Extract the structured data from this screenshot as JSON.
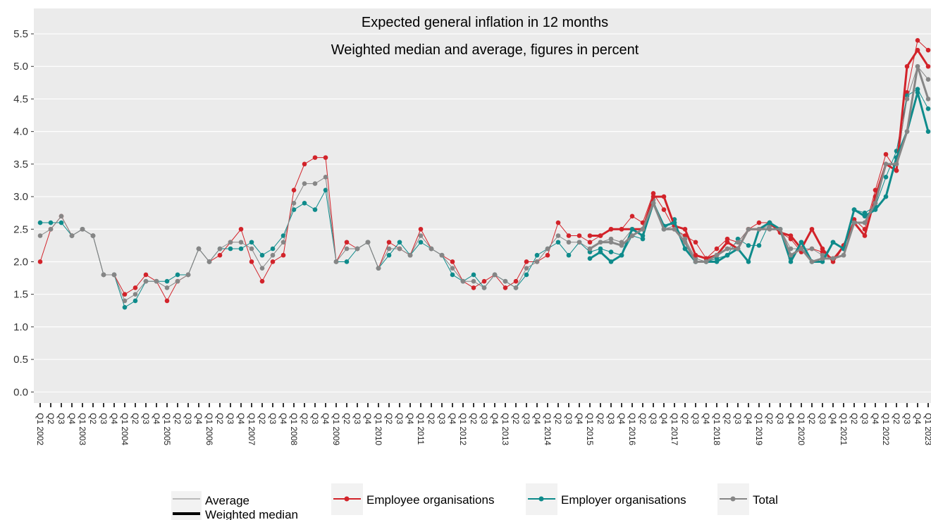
{
  "chart_data": {
    "type": "line",
    "title": "Expected general inflation in 12 months",
    "subtitle": "Weighted median and average, figures in percent",
    "categories": [
      "Q1 2002",
      "Q2",
      "Q3",
      "Q4",
      "Q1 2003",
      "Q2",
      "Q3",
      "Q4",
      "Q1 2004",
      "Q2",
      "Q3",
      "Q4",
      "Q1 2005",
      "Q2",
      "Q3",
      "Q4",
      "Q1 2006",
      "Q2",
      "Q3",
      "Q4",
      "Q1 2007",
      "Q2",
      "Q3",
      "Q4",
      "Q1 2008",
      "Q2",
      "Q3",
      "Q4",
      "Q1 2009",
      "Q2",
      "Q3",
      "Q4",
      "Q1 2010",
      "Q2",
      "Q3",
      "Q4",
      "Q1 2011",
      "Q2",
      "Q3",
      "Q4",
      "Q1 2012",
      "Q2",
      "Q3",
      "Q4",
      "Q1 2013",
      "Q2",
      "Q3",
      "Q4",
      "Q1 2014",
      "Q2",
      "Q3",
      "Q4",
      "Q1 2015",
      "Q2",
      "Q3",
      "Q4",
      "Q1 2016",
      "Q2",
      "Q3",
      "Q4",
      "Q1 2017",
      "Q2",
      "Q3",
      "Q4",
      "Q1 2018",
      "Q2",
      "Q3",
      "Q4",
      "Q1 2019",
      "Q2",
      "Q3",
      "Q4",
      "Q1 2020",
      "Q2",
      "Q3",
      "Q4",
      "Q1 2021",
      "Q2",
      "Q3",
      "Q4",
      "Q1 2022",
      "Q2",
      "Q3",
      "Q4",
      "Q1 2023"
    ],
    "line_styles": [
      "Average",
      "Weighted median"
    ],
    "series": [
      {
        "name": "Employee organisations",
        "color": "#d2232a",
        "values": [
          2.0,
          2.5,
          2.7,
          2.4,
          2.5,
          2.4,
          1.8,
          1.8,
          1.5,
          1.6,
          1.8,
          1.7,
          1.4,
          1.7,
          1.8,
          2.2,
          2.0,
          2.1,
          2.3,
          2.5,
          2.0,
          1.7,
          2.0,
          2.1,
          3.1,
          3.5,
          3.6,
          3.6,
          2.0,
          2.3,
          2.2,
          2.3,
          1.9,
          2.3,
          2.2,
          2.1,
          2.5,
          2.2,
          2.1,
          2.0,
          1.7,
          1.6,
          1.7,
          1.8,
          1.6,
          1.7,
          2.0,
          2.0,
          2.1,
          2.6,
          2.4,
          2.4,
          2.3,
          2.4,
          2.5,
          2.5,
          2.7,
          2.6,
          3.05,
          2.8,
          2.5,
          2.4,
          2.3,
          2.05,
          2.2,
          2.35,
          2.3,
          2.5,
          2.6,
          2.6,
          2.45,
          2.35,
          2.15,
          2.2,
          2.15,
          2.05,
          2.25,
          2.65,
          2.5,
          3.1,
          3.65,
          3.4,
          4.6,
          5.4,
          5.25
        ],
        "median_values": [
          null,
          null,
          null,
          null,
          null,
          null,
          null,
          null,
          null,
          null,
          null,
          null,
          null,
          null,
          null,
          null,
          null,
          null,
          null,
          null,
          null,
          null,
          null,
          null,
          null,
          null,
          null,
          null,
          null,
          null,
          null,
          null,
          null,
          null,
          null,
          null,
          null,
          null,
          null,
          null,
          null,
          null,
          null,
          null,
          null,
          null,
          null,
          null,
          null,
          null,
          null,
          null,
          2.4,
          2.4,
          2.5,
          2.5,
          2.5,
          2.5,
          3.0,
          3.0,
          2.55,
          2.5,
          2.1,
          2.05,
          2.1,
          2.3,
          2.2,
          2.5,
          2.5,
          2.6,
          2.45,
          2.4,
          2.2,
          2.5,
          2.2,
          2.0,
          2.25,
          2.6,
          2.4,
          3.0,
          3.5,
          3.4,
          5.0,
          5.25,
          5.0
        ]
      },
      {
        "name": "Employer organisations",
        "color": "#0e8b8b",
        "values": [
          2.6,
          2.6,
          2.6,
          2.4,
          2.5,
          2.4,
          1.8,
          1.8,
          1.3,
          1.4,
          1.7,
          1.7,
          1.7,
          1.8,
          1.8,
          2.2,
          2.0,
          2.2,
          2.2,
          2.2,
          2.3,
          2.1,
          2.2,
          2.4,
          2.8,
          2.9,
          2.8,
          3.1,
          2.0,
          2.0,
          2.2,
          2.3,
          1.9,
          2.1,
          2.3,
          2.1,
          2.3,
          2.2,
          2.1,
          1.8,
          1.7,
          1.8,
          1.6,
          1.8,
          1.7,
          1.6,
          1.8,
          2.1,
          2.2,
          2.3,
          2.1,
          2.3,
          2.15,
          2.2,
          2.15,
          2.1,
          2.4,
          2.35,
          2.9,
          2.5,
          2.65,
          2.2,
          2.0,
          2.0,
          2.05,
          2.1,
          2.35,
          2.25,
          2.25,
          2.6,
          2.5,
          2.05,
          2.3,
          2.0,
          2.05,
          2.3,
          2.2,
          2.8,
          2.75,
          2.85,
          3.3,
          3.7,
          4.55,
          4.65,
          4.35
        ],
        "median_values": [
          null,
          null,
          null,
          null,
          null,
          null,
          null,
          null,
          null,
          null,
          null,
          null,
          null,
          null,
          null,
          null,
          null,
          null,
          null,
          null,
          null,
          null,
          null,
          null,
          null,
          null,
          null,
          null,
          null,
          null,
          null,
          null,
          null,
          null,
          null,
          null,
          null,
          null,
          null,
          null,
          null,
          null,
          null,
          null,
          null,
          null,
          null,
          null,
          null,
          null,
          null,
          null,
          2.05,
          2.15,
          2.0,
          2.1,
          2.5,
          2.4,
          2.9,
          2.55,
          2.6,
          2.2,
          2.0,
          2.0,
          2.0,
          2.1,
          2.2,
          2.0,
          2.5,
          2.6,
          2.5,
          2.0,
          2.3,
          2.0,
          2.0,
          2.3,
          2.2,
          2.8,
          2.7,
          2.8,
          3.0,
          3.6,
          4.0,
          4.6,
          4.0
        ]
      },
      {
        "name": "Total",
        "color": "#868686",
        "values": [
          2.4,
          2.5,
          2.7,
          2.4,
          2.5,
          2.4,
          1.8,
          1.8,
          1.4,
          1.5,
          1.7,
          1.7,
          1.6,
          1.7,
          1.8,
          2.2,
          2.0,
          2.2,
          2.3,
          2.3,
          2.2,
          1.9,
          2.1,
          2.3,
          2.9,
          3.2,
          3.2,
          3.3,
          2.0,
          2.2,
          2.2,
          2.3,
          1.9,
          2.2,
          2.2,
          2.1,
          2.4,
          2.2,
          2.1,
          1.9,
          1.7,
          1.7,
          1.6,
          1.8,
          1.7,
          1.6,
          1.9,
          2.0,
          2.2,
          2.4,
          2.3,
          2.3,
          2.2,
          2.3,
          2.35,
          2.3,
          2.5,
          2.5,
          2.95,
          2.5,
          2.55,
          2.35,
          2.05,
          2.0,
          2.1,
          2.2,
          2.3,
          2.5,
          2.5,
          2.55,
          2.5,
          2.2,
          2.2,
          2.2,
          2.1,
          2.05,
          2.1,
          2.6,
          2.6,
          2.9,
          3.5,
          3.5,
          4.5,
          5.0,
          4.8
        ],
        "median_values": [
          null,
          null,
          null,
          null,
          null,
          null,
          null,
          null,
          null,
          null,
          null,
          null,
          null,
          null,
          null,
          null,
          null,
          null,
          null,
          null,
          null,
          null,
          null,
          null,
          null,
          null,
          null,
          null,
          null,
          null,
          null,
          null,
          null,
          null,
          null,
          null,
          null,
          null,
          null,
          null,
          null,
          null,
          null,
          null,
          null,
          null,
          null,
          null,
          null,
          null,
          null,
          null,
          2.2,
          2.3,
          2.3,
          2.25,
          2.4,
          2.5,
          2.9,
          2.5,
          2.5,
          2.3,
          2.0,
          2.0,
          2.1,
          2.2,
          2.2,
          2.5,
          2.5,
          2.5,
          2.5,
          2.1,
          2.2,
          2.0,
          2.05,
          2.05,
          2.1,
          2.6,
          2.6,
          2.9,
          3.5,
          3.5,
          4.0,
          5.0,
          4.5
        ]
      }
    ],
    "ylim": [
      -0.17,
      5.89
    ],
    "yticks": [
      {
        "value": 0,
        "label": "0.0"
      },
      0.5,
      {
        "value": 1,
        "label": "1.0"
      },
      1.5,
      {
        "value": 2,
        "label": "2.0"
      },
      2.5,
      {
        "value": 3,
        "label": "3.0"
      },
      3.5,
      {
        "value": 4,
        "label": "4.0"
      },
      4.5,
      {
        "value": 5,
        "label": "5.0"
      },
      5.5
    ],
    "grid": true
  }
}
